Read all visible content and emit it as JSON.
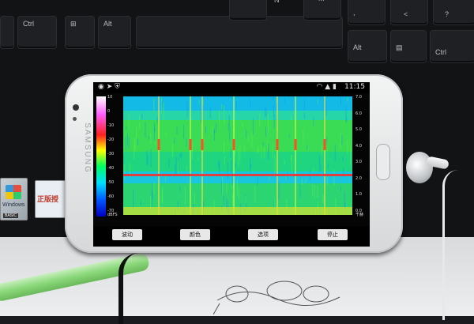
{
  "keyboard": {
    "keys": [
      "Ctrl",
      "Alt",
      "Alt",
      "Ctrl",
      "N",
      "M",
      ",",
      "<",
      "?"
    ]
  },
  "stickers": {
    "windows_text": "Windows",
    "windows_edition": "BASIC",
    "genuine_text": "正版授"
  },
  "phone": {
    "brand": "SAMSUNG",
    "status_time": "11:15",
    "buttons": [
      "波动",
      "颜色",
      "选项",
      "停止"
    ]
  },
  "spectrogram": {
    "left_scale": [
      "10",
      "0",
      "-10",
      "-20",
      "-30",
      "-40",
      "-50",
      "-60",
      "-70"
    ],
    "left_unit": "dBFS",
    "right_scale": [
      "7.0",
      "6.0",
      "5.0",
      "4.0",
      "3.0",
      "2.0",
      "1.0",
      "0.0"
    ],
    "right_unit": "千赫"
  },
  "colors": {
    "accent_green": "#33e04a",
    "accent_cyan": "#18c8f0",
    "line_red": "#e04040"
  }
}
